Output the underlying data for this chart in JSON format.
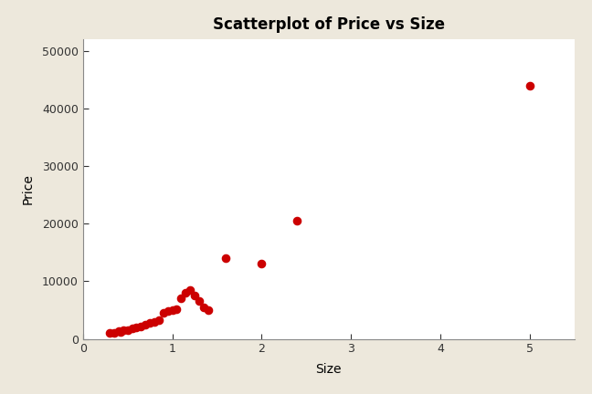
{
  "title": "Scatterplot of Price vs Size",
  "xlabel": "Size",
  "ylabel": "Price",
  "xticks": [
    0,
    1,
    2,
    3,
    4,
    5
  ],
  "yticks": [
    0,
    10000,
    20000,
    30000,
    40000,
    50000
  ],
  "marker_color": "#cc0000",
  "marker_size": 35,
  "background_color": "#ede8dc",
  "plot_bg_color": "#ffffff",
  "title_fontsize": 12,
  "label_fontsize": 10,
  "tick_fontsize": 9,
  "x": [
    0.3,
    0.35,
    0.4,
    0.42,
    0.45,
    0.5,
    0.55,
    0.6,
    0.65,
    0.7,
    0.75,
    0.8,
    0.85,
    0.9,
    0.95,
    1.0,
    1.05,
    1.1,
    1.15,
    1.2,
    1.25,
    1.3,
    1.35,
    1.4,
    1.6,
    2.0,
    2.4,
    5.0
  ],
  "y": [
    1000,
    1100,
    1300,
    1200,
    1500,
    1500,
    1800,
    2000,
    2200,
    2500,
    2700,
    3000,
    3200,
    4500,
    4800,
    5000,
    5200,
    7000,
    8000,
    8500,
    7500,
    6500,
    5500,
    5000,
    14000,
    13000,
    20500,
    44000
  ]
}
